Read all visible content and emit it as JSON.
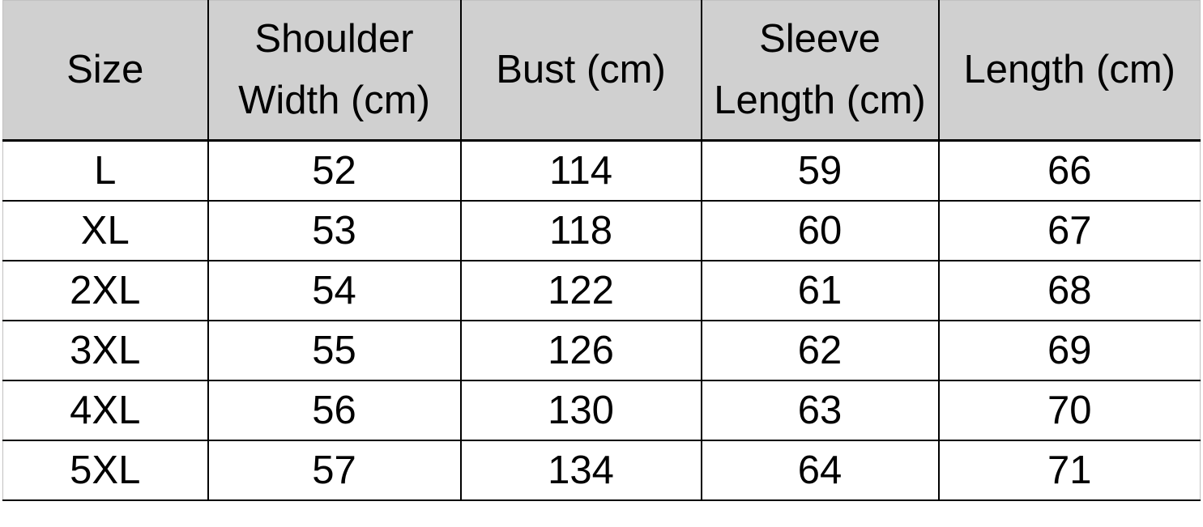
{
  "colors": {
    "header_background": "#d0d0d0",
    "grid_border": "#000000",
    "outer_border": "#c2c1c1",
    "text": "#000000",
    "row_background": "#ffffff"
  },
  "chart_data": {
    "type": "table",
    "columns": [
      "Size",
      "Shoulder Width (cm)",
      "Bust (cm)",
      "Sleeve Length (cm)",
      "Length (cm)"
    ],
    "rows": [
      [
        "L",
        "52",
        "114",
        "59",
        "66"
      ],
      [
        "XL",
        "53",
        "118",
        "60",
        "67"
      ],
      [
        "2XL",
        "54",
        "122",
        "61",
        "68"
      ],
      [
        "3XL",
        "55",
        "126",
        "62",
        "69"
      ],
      [
        "4XL",
        "56",
        "130",
        "63",
        "70"
      ],
      [
        "5XL",
        "57",
        "134",
        "64",
        "71"
      ]
    ]
  }
}
